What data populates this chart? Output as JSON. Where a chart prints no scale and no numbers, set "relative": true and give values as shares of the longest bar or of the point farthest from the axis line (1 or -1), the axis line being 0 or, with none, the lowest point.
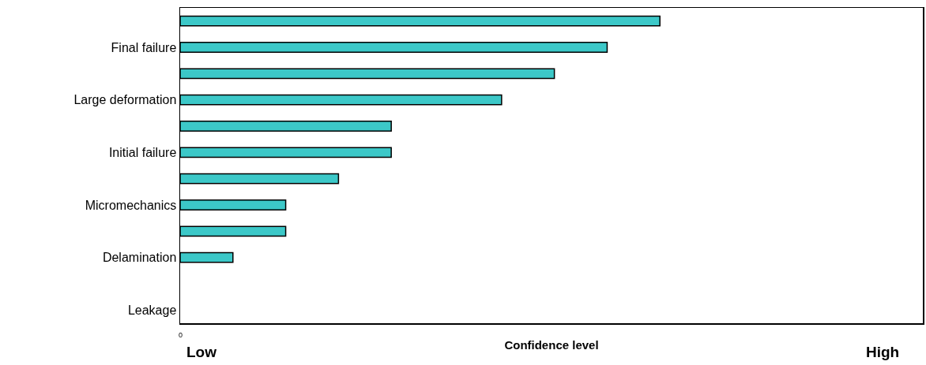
{
  "chart_data": {
    "type": "bar",
    "orientation": "horizontal",
    "relative": true,
    "categories": [
      null,
      "Final failure",
      null,
      "Large deformation",
      null,
      "Initial failure",
      null,
      "Micromechanics",
      null,
      "Delamination",
      null,
      "Leakage"
    ],
    "values": [
      1,
      0.89,
      0.78,
      0.67,
      0.44,
      0.44,
      0.33,
      0.22,
      0.22,
      0.11,
      null,
      null
    ],
    "color": "#3cc8c8",
    "xlabel": "Confidence level",
    "annotations": [
      "0",
      "Low",
      "High"
    ],
    "grid": false,
    "legend": false
  }
}
